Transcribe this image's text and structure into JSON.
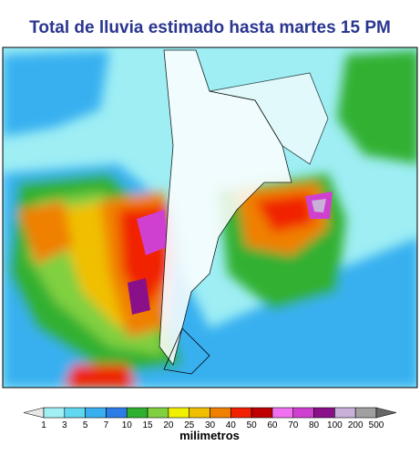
{
  "title": "Total de lluvia estimado hasta martes 15 PM",
  "colorbar": {
    "labels": [
      1,
      3,
      5,
      7,
      10,
      15,
      20,
      25,
      30,
      40,
      50,
      60,
      70,
      80,
      100,
      200,
      500
    ],
    "colors": [
      "#e8e8e8",
      "#a0f0f4",
      "#60d8f0",
      "#38b0f0",
      "#2c7ce8",
      "#30b030",
      "#80d040",
      "#f0f000",
      "#f0c000",
      "#f08000",
      "#f02000",
      "#c00000",
      "#f070f0",
      "#d040d0",
      "#8a108a",
      "#c8b0d8",
      "#a0a0a0",
      "#686868"
    ],
    "unit": "milimetros"
  }
}
